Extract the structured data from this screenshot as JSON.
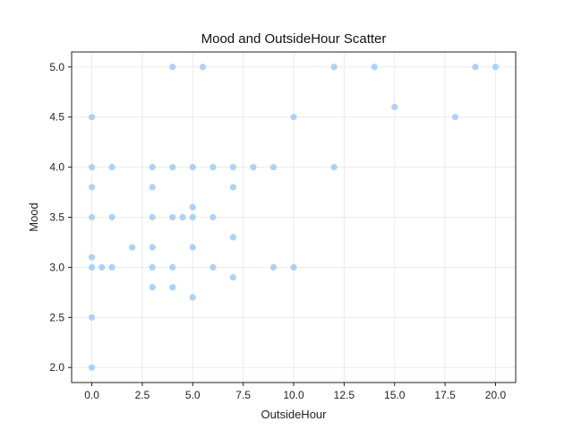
{
  "chart_data": {
    "type": "scatter",
    "title": "Mood and OutsideHour Scatter",
    "xlabel": "OutsideHour",
    "ylabel": "Mood",
    "xlim": [
      -1.0,
      21.0
    ],
    "ylim": [
      1.85,
      5.15
    ],
    "xticks": [
      0.0,
      2.5,
      5.0,
      7.5,
      10.0,
      12.5,
      15.0,
      17.5,
      20.0
    ],
    "xtick_labels": [
      "0.0",
      "2.5",
      "5.0",
      "7.5",
      "10.0",
      "12.5",
      "15.0",
      "17.5",
      "20.0"
    ],
    "yticks": [
      2.0,
      2.5,
      3.0,
      3.5,
      4.0,
      4.5,
      5.0
    ],
    "ytick_labels": [
      "2.0",
      "2.5",
      "3.0",
      "3.5",
      "4.0",
      "4.5",
      "5.0"
    ],
    "grid": true,
    "point_color": "#a3cdf7",
    "points": [
      [
        0,
        2.0
      ],
      [
        0,
        2.5
      ],
      [
        0,
        3.0
      ],
      [
        0,
        3.1
      ],
      [
        0,
        3.5
      ],
      [
        0,
        3.8
      ],
      [
        0,
        4.0
      ],
      [
        0,
        4.5
      ],
      [
        0.5,
        3.0
      ],
      [
        1,
        3.0
      ],
      [
        1,
        3.5
      ],
      [
        1,
        4.0
      ],
      [
        2,
        3.2
      ],
      [
        3,
        2.8
      ],
      [
        3,
        3.0
      ],
      [
        3,
        3.2
      ],
      [
        3,
        3.5
      ],
      [
        3,
        3.8
      ],
      [
        3,
        4.0
      ],
      [
        4,
        2.8
      ],
      [
        4,
        3.0
      ],
      [
        4,
        3.5
      ],
      [
        4,
        4.0
      ],
      [
        4,
        5.0
      ],
      [
        4.5,
        3.5
      ],
      [
        5,
        2.7
      ],
      [
        5,
        3.2
      ],
      [
        5,
        3.5
      ],
      [
        5,
        3.6
      ],
      [
        5,
        4.0
      ],
      [
        5.5,
        5.0
      ],
      [
        6,
        3.0
      ],
      [
        6,
        3.5
      ],
      [
        6,
        4.0
      ],
      [
        7,
        2.9
      ],
      [
        7,
        3.3
      ],
      [
        7,
        3.8
      ],
      [
        7,
        4.0
      ],
      [
        8,
        4.0
      ],
      [
        9,
        3.0
      ],
      [
        9,
        4.0
      ],
      [
        10,
        3.0
      ],
      [
        10,
        4.5
      ],
      [
        12,
        4.0
      ],
      [
        12,
        5.0
      ],
      [
        14,
        5.0
      ],
      [
        15,
        4.6
      ],
      [
        18,
        4.5
      ],
      [
        19,
        5.0
      ],
      [
        20,
        5.0
      ]
    ]
  }
}
